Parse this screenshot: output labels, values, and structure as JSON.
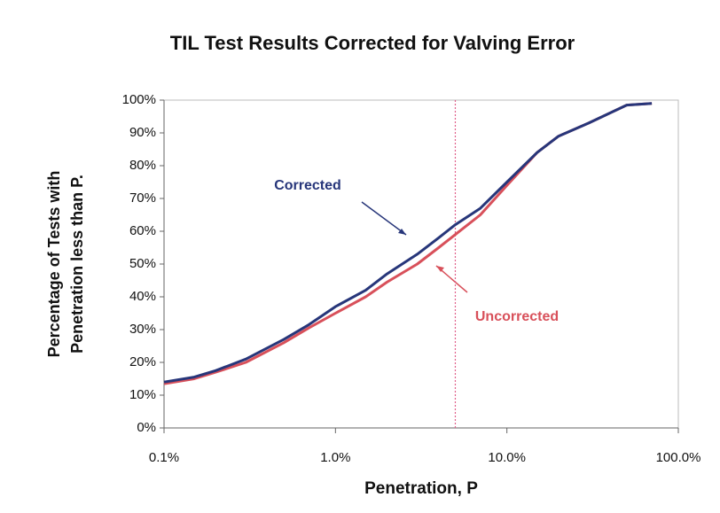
{
  "chart_data": {
    "type": "line",
    "title": "TIL Test Results Corrected for Valving Error",
    "xlabel": "Penetration, P",
    "ylabel": [
      "Percentage of Tests with",
      "Penetration less  than P."
    ],
    "xscale": "log",
    "x": [
      0.1,
      0.15,
      0.2,
      0.3,
      0.5,
      0.7,
      1,
      1.5,
      2,
      3,
      4,
      5,
      7,
      10,
      15,
      20,
      30,
      50,
      70
    ],
    "series": [
      {
        "name": "Corrected",
        "color": "#27367a",
        "values": [
          14,
          15.5,
          17.5,
          21,
          27,
          31.5,
          37,
          42,
          47,
          53,
          58,
          62,
          67,
          75,
          84,
          89,
          93,
          98.5,
          99
        ]
      },
      {
        "name": "Uncorrected",
        "color": "#d8505a",
        "values": [
          13.5,
          15,
          17,
          20,
          26,
          30.5,
          35,
          40,
          44.5,
          50,
          55,
          59,
          65,
          74,
          84,
          89,
          93,
          98.5,
          99
        ]
      }
    ],
    "vline": 5,
    "vline_color": "#e0608a",
    "xlim": [
      0.1,
      100
    ],
    "xticks": [
      {
        "value": 0.1,
        "label": "0.1%"
      },
      {
        "value": 1,
        "label": "1.0%"
      },
      {
        "value": 10,
        "label": "10.0%"
      },
      {
        "value": 100,
        "label": "100.0%"
      }
    ],
    "ylim": [
      0,
      100
    ],
    "yticks": [
      {
        "value": 0,
        "label": "0%"
      },
      {
        "value": 10,
        "label": "10%"
      },
      {
        "value": 20,
        "label": "20%"
      },
      {
        "value": 30,
        "label": "30%"
      },
      {
        "value": 40,
        "label": "40%"
      },
      {
        "value": 50,
        "label": "50%"
      },
      {
        "value": 60,
        "label": "60%"
      },
      {
        "value": 70,
        "label": "70%"
      },
      {
        "value": 80,
        "label": "80%"
      },
      {
        "value": 90,
        "label": "90%"
      },
      {
        "value": 100,
        "label": "100%"
      }
    ],
    "grid": false
  }
}
